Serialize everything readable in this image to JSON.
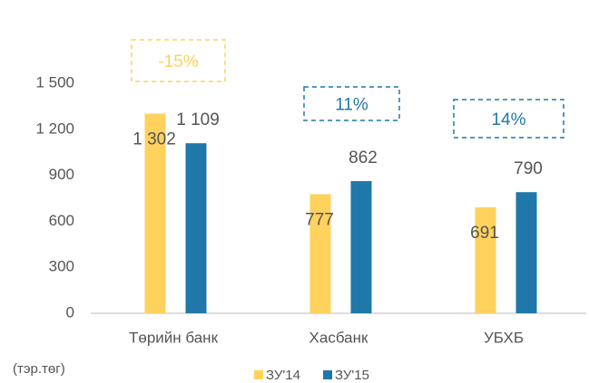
{
  "chart_data": {
    "type": "bar",
    "categories": [
      "Төрийн банк",
      "Хасбанк",
      "УБХБ"
    ],
    "series": [
      {
        "name": "ЗУ'14",
        "color": "#ffd25e",
        "values": [
          1302,
          777,
          691
        ],
        "value_labels": [
          "1 302",
          "777",
          "691"
        ]
      },
      {
        "name": "ЗУ'15",
        "color": "#1f78a9",
        "values": [
          1109,
          862,
          790
        ],
        "value_labels": [
          "1 109",
          "862",
          "790"
        ]
      }
    ],
    "ylim": [
      0,
      1500
    ],
    "yticks": [
      0,
      300,
      600,
      900,
      {
        "value": 1200,
        "label": "1 200"
      },
      {
        "value": 1500,
        "label": "1 500"
      }
    ],
    "y_axis_label": "(тэр.төг)",
    "annotations": [
      {
        "text": "-15%",
        "color": "#ffd25e"
      },
      {
        "text": "11%",
        "color": "#1f78a9"
      },
      {
        "text": "14%",
        "color": "#1f78a9"
      }
    ],
    "legend": "bottom",
    "grid": false
  }
}
